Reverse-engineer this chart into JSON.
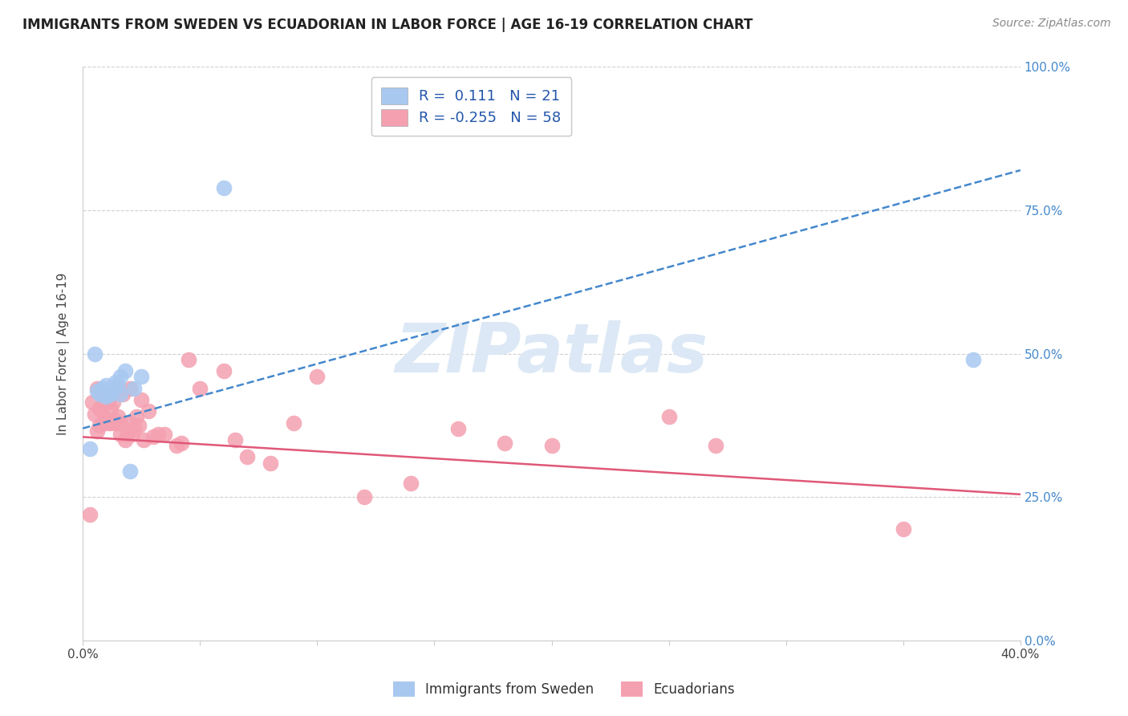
{
  "title": "IMMIGRANTS FROM SWEDEN VS ECUADORIAN IN LABOR FORCE | AGE 16-19 CORRELATION CHART",
  "source": "Source: ZipAtlas.com",
  "ylabel": "In Labor Force | Age 16-19",
  "xlim": [
    0.0,
    0.4
  ],
  "ylim": [
    0.0,
    1.0
  ],
  "xticks": [
    0.0,
    0.05,
    0.1,
    0.15,
    0.2,
    0.25,
    0.3,
    0.35,
    0.4
  ],
  "xticklabels": [
    "0.0%",
    "",
    "",
    "",
    "",
    "",
    "",
    "",
    "40.0%"
  ],
  "yticks": [
    0.0,
    0.25,
    0.5,
    0.75,
    1.0
  ],
  "yticklabels": [
    "0.0%",
    "25.0%",
    "50.0%",
    "75.0%",
    "100.0%"
  ],
  "sweden_color": "#a8c8f0",
  "ecuador_color": "#f4a0b0",
  "sweden_line_color": "#4488cc",
  "ecuador_line_color": "#e05878",
  "sweden_R": 0.111,
  "sweden_N": 21,
  "ecuador_R": -0.255,
  "ecuador_N": 58,
  "legend_color": "#2255aa",
  "sweden_x": [
    0.003,
    0.005,
    0.006,
    0.007,
    0.008,
    0.009,
    0.01,
    0.01,
    0.011,
    0.012,
    0.013,
    0.014,
    0.015,
    0.016,
    0.016,
    0.018,
    0.02,
    0.022,
    0.025,
    0.06,
    0.38
  ],
  "sweden_y": [
    0.335,
    0.5,
    0.435,
    0.43,
    0.44,
    0.43,
    0.425,
    0.445,
    0.44,
    0.43,
    0.44,
    0.45,
    0.445,
    0.43,
    0.46,
    0.47,
    0.295,
    0.44,
    0.46,
    0.79,
    0.49
  ],
  "ecuador_x": [
    0.003,
    0.004,
    0.005,
    0.006,
    0.006,
    0.007,
    0.007,
    0.008,
    0.008,
    0.009,
    0.009,
    0.01,
    0.01,
    0.01,
    0.011,
    0.011,
    0.012,
    0.012,
    0.013,
    0.013,
    0.014,
    0.015,
    0.015,
    0.016,
    0.016,
    0.017,
    0.018,
    0.019,
    0.02,
    0.02,
    0.021,
    0.022,
    0.023,
    0.024,
    0.025,
    0.026,
    0.028,
    0.03,
    0.032,
    0.035,
    0.04,
    0.042,
    0.045,
    0.05,
    0.06,
    0.065,
    0.07,
    0.08,
    0.09,
    0.1,
    0.12,
    0.14,
    0.16,
    0.18,
    0.2,
    0.25,
    0.27,
    0.35
  ],
  "ecuador_y": [
    0.22,
    0.415,
    0.395,
    0.365,
    0.44,
    0.405,
    0.375,
    0.4,
    0.43,
    0.38,
    0.415,
    0.43,
    0.385,
    0.415,
    0.38,
    0.42,
    0.405,
    0.38,
    0.385,
    0.415,
    0.38,
    0.44,
    0.39,
    0.36,
    0.38,
    0.43,
    0.35,
    0.36,
    0.44,
    0.38,
    0.36,
    0.37,
    0.39,
    0.375,
    0.42,
    0.35,
    0.4,
    0.355,
    0.36,
    0.36,
    0.34,
    0.345,
    0.49,
    0.44,
    0.47,
    0.35,
    0.32,
    0.31,
    0.38,
    0.46,
    0.25,
    0.275,
    0.37,
    0.345,
    0.34,
    0.39,
    0.34,
    0.195
  ],
  "sweden_trend_x0": 0.0,
  "sweden_trend_y0": 0.37,
  "sweden_trend_x1": 0.4,
  "sweden_trend_y1": 0.82,
  "ecuador_trend_x0": 0.0,
  "ecuador_trend_y0": 0.355,
  "ecuador_trend_x1": 0.4,
  "ecuador_trend_y1": 0.255,
  "background_color": "#ffffff",
  "grid_color": "#d0d0d0",
  "watermark_text": "ZIPatlas",
  "right_ytick_color": "#4488cc",
  "title_fontsize": 12,
  "axis_label_fontsize": 11,
  "tick_fontsize": 11
}
